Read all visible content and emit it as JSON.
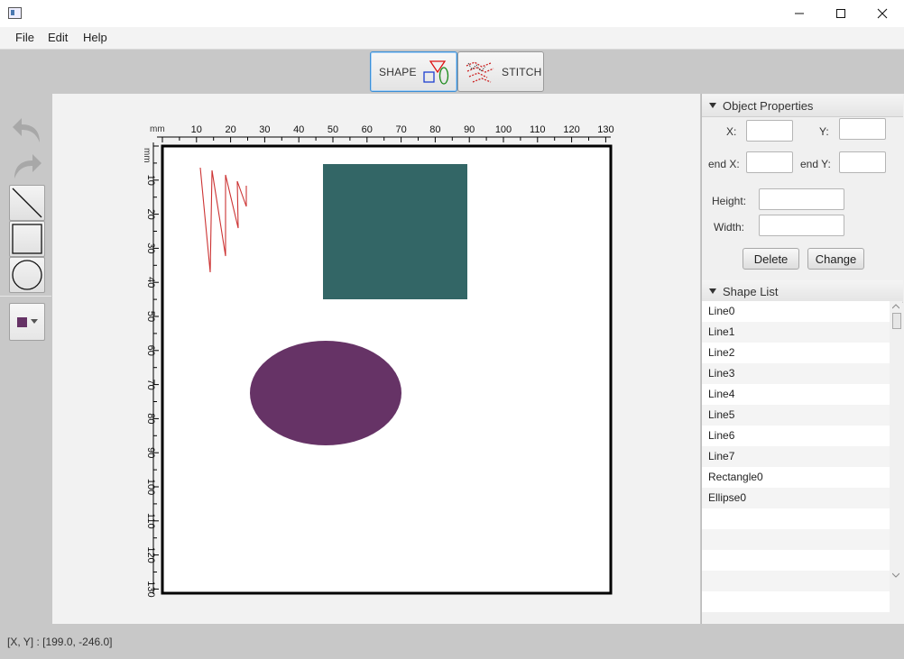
{
  "window": {
    "title": "",
    "controls": {
      "minimize": "minimize-icon",
      "maximize": "maximize-icon",
      "close": "close-icon"
    }
  },
  "menubar": {
    "items": [
      "File",
      "Edit",
      "Help"
    ]
  },
  "mode_toolbar": {
    "shape_label": "SHAPE",
    "stitch_label": "STITCH",
    "active": "SHAPE"
  },
  "tools": {
    "items": [
      "undo-icon",
      "redo-icon",
      "line-tool-icon",
      "rectangle-tool-icon",
      "ellipse-tool-icon"
    ],
    "selected_color": "#663366"
  },
  "ruler": {
    "unit": "mm",
    "x_ticks": [
      "10",
      "20",
      "30",
      "40",
      "50",
      "60",
      "70",
      "80",
      "90",
      "100",
      "110",
      "120",
      "130"
    ],
    "y_ticks": [
      "10",
      "20",
      "30",
      "40",
      "50",
      "60",
      "70",
      "80",
      "90",
      "100",
      "110",
      "120",
      "130"
    ]
  },
  "canvas_shapes": {
    "rectangle_color": "#336666",
    "ellipse_color": "#663366",
    "line_color": "#cc3333"
  },
  "object_properties": {
    "title": "Object Properties",
    "x_label": "X:",
    "y_label": "Y:",
    "end_x_label": "end X:",
    "end_y_label": "end Y:",
    "height_label": "Height:",
    "width_label": "Width:",
    "x_value": "",
    "y_value": "",
    "end_x_value": "",
    "end_y_value": "",
    "height_value": "",
    "width_value": "",
    "delete_label": "Delete",
    "change_label": "Change"
  },
  "shape_list": {
    "title": "Shape List",
    "items": [
      "Line0",
      "Line1",
      "Line2",
      "Line3",
      "Line4",
      "Line5",
      "Line6",
      "Line7",
      "Rectangle0",
      "Ellipse0"
    ]
  },
  "status": {
    "coords": "[X, Y] : [199.0, -246.0]"
  }
}
